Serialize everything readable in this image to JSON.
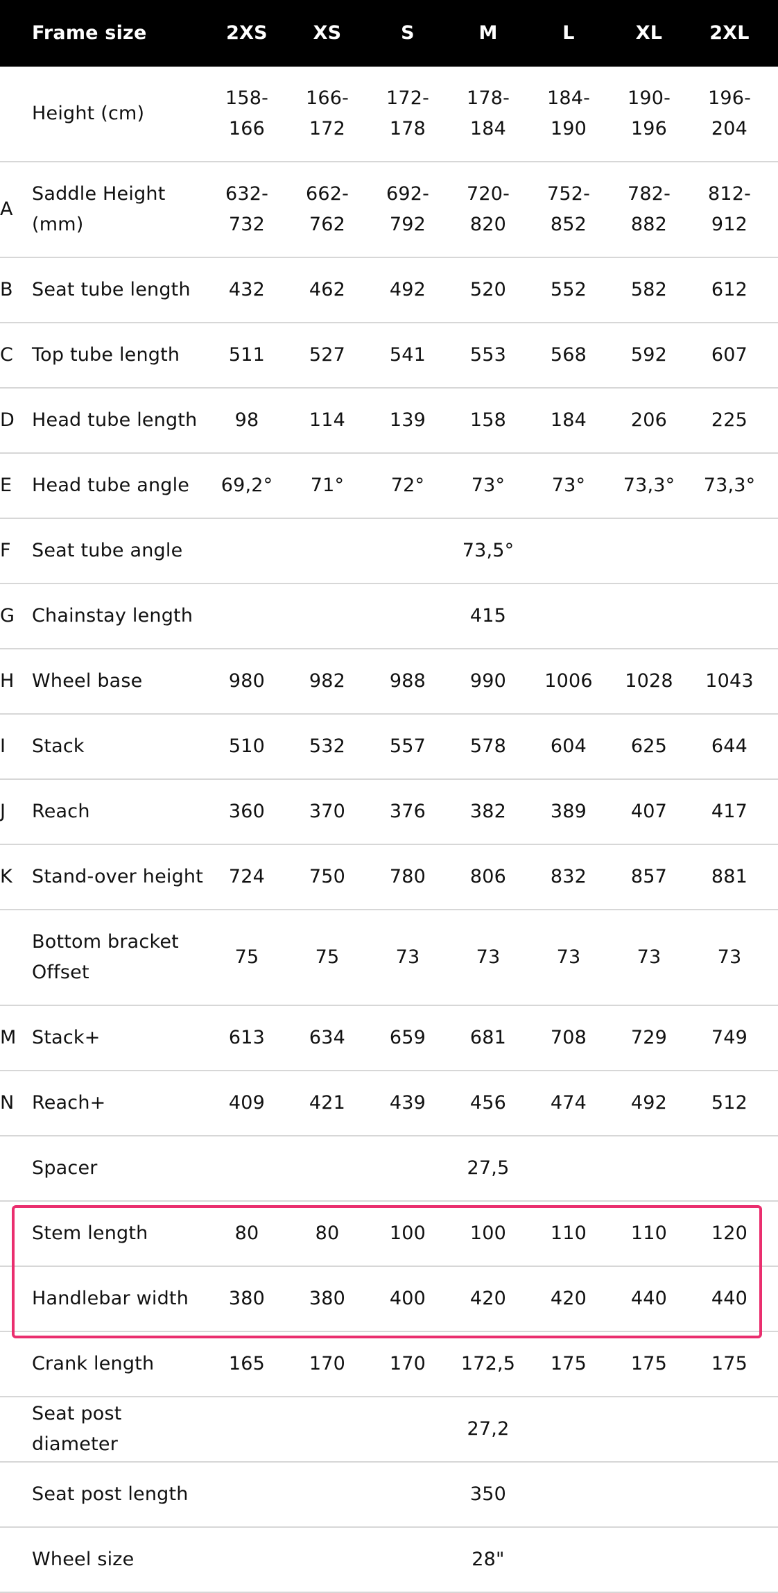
{
  "header": {
    "label": "Frame size",
    "sizes": [
      "2XS",
      "XS",
      "S",
      "M",
      "L",
      "XL",
      "2XL"
    ]
  },
  "rows": [
    {
      "letter": "",
      "label": "Height (cm)",
      "values": [
        "158-\n166",
        "166-\n172",
        "172-\n178",
        "178-\n184",
        "184-\n190",
        "190-\n196",
        "196-\n204"
      ]
    },
    {
      "letter": "A",
      "label": "Saddle Height\n(mm)",
      "values": [
        "632-\n732",
        "662-\n762",
        "692-\n792",
        "720-\n820",
        "752-\n852",
        "782-\n882",
        "812-\n912"
      ]
    },
    {
      "letter": "B",
      "label": "Seat tube length",
      "values": [
        "432",
        "462",
        "492",
        "520",
        "552",
        "582",
        "612"
      ]
    },
    {
      "letter": "C",
      "label": "Top tube length",
      "values": [
        "511",
        "527",
        "541",
        "553",
        "568",
        "592",
        "607"
      ]
    },
    {
      "letter": "D",
      "label": "Head tube length",
      "values": [
        "98",
        "114",
        "139",
        "158",
        "184",
        "206",
        "225"
      ]
    },
    {
      "letter": "E",
      "label": "Head tube angle",
      "values": [
        "69,2°",
        "71°",
        "72°",
        "73°",
        "73°",
        "73,3°",
        "73,3°"
      ]
    },
    {
      "letter": "F",
      "label": "Seat tube angle",
      "span": "73,5°"
    },
    {
      "letter": "G",
      "label": "Chainstay length",
      "span": "415"
    },
    {
      "letter": "H",
      "label": "Wheel base",
      "values": [
        "980",
        "982",
        "988",
        "990",
        "1006",
        "1028",
        "1043"
      ]
    },
    {
      "letter": "I",
      "label": "Stack",
      "values": [
        "510",
        "532",
        "557",
        "578",
        "604",
        "625",
        "644"
      ]
    },
    {
      "letter": "J",
      "label": "Reach",
      "values": [
        "360",
        "370",
        "376",
        "382",
        "389",
        "407",
        "417"
      ]
    },
    {
      "letter": "K",
      "label": "Stand-over height",
      "values": [
        "724",
        "750",
        "780",
        "806",
        "832",
        "857",
        "881"
      ]
    },
    {
      "letter": "",
      "label": "Bottom bracket\nOffset",
      "values": [
        "75",
        "75",
        "73",
        "73",
        "73",
        "73",
        "73"
      ]
    },
    {
      "letter": "M",
      "label": "Stack+",
      "values": [
        "613",
        "634",
        "659",
        "681",
        "708",
        "729",
        "749"
      ]
    },
    {
      "letter": "N",
      "label": "Reach+",
      "values": [
        "409",
        "421",
        "439",
        "456",
        "474",
        "492",
        "512"
      ]
    },
    {
      "letter": "",
      "label": "Spacer",
      "span": "27,5"
    },
    {
      "letter": "",
      "label": "Stem length",
      "values": [
        "80",
        "80",
        "100",
        "100",
        "110",
        "110",
        "120"
      ]
    },
    {
      "letter": "",
      "label": "Handlebar width",
      "values": [
        "380",
        "380",
        "400",
        "420",
        "420",
        "440",
        "440"
      ]
    },
    {
      "letter": "",
      "label": "Crank length",
      "values": [
        "165",
        "170",
        "170",
        "172,5",
        "175",
        "175",
        "175"
      ]
    },
    {
      "letter": "",
      "label": "Seat post diameter",
      "span": "27,2"
    },
    {
      "letter": "",
      "label": "Seat post length",
      "span": "350"
    },
    {
      "letter": "",
      "label": "Wheel size",
      "span": "28\""
    }
  ],
  "colors": {
    "header_bg": "#000000",
    "highlight": "#ea2e6e",
    "divider": "#d7d7d7"
  }
}
